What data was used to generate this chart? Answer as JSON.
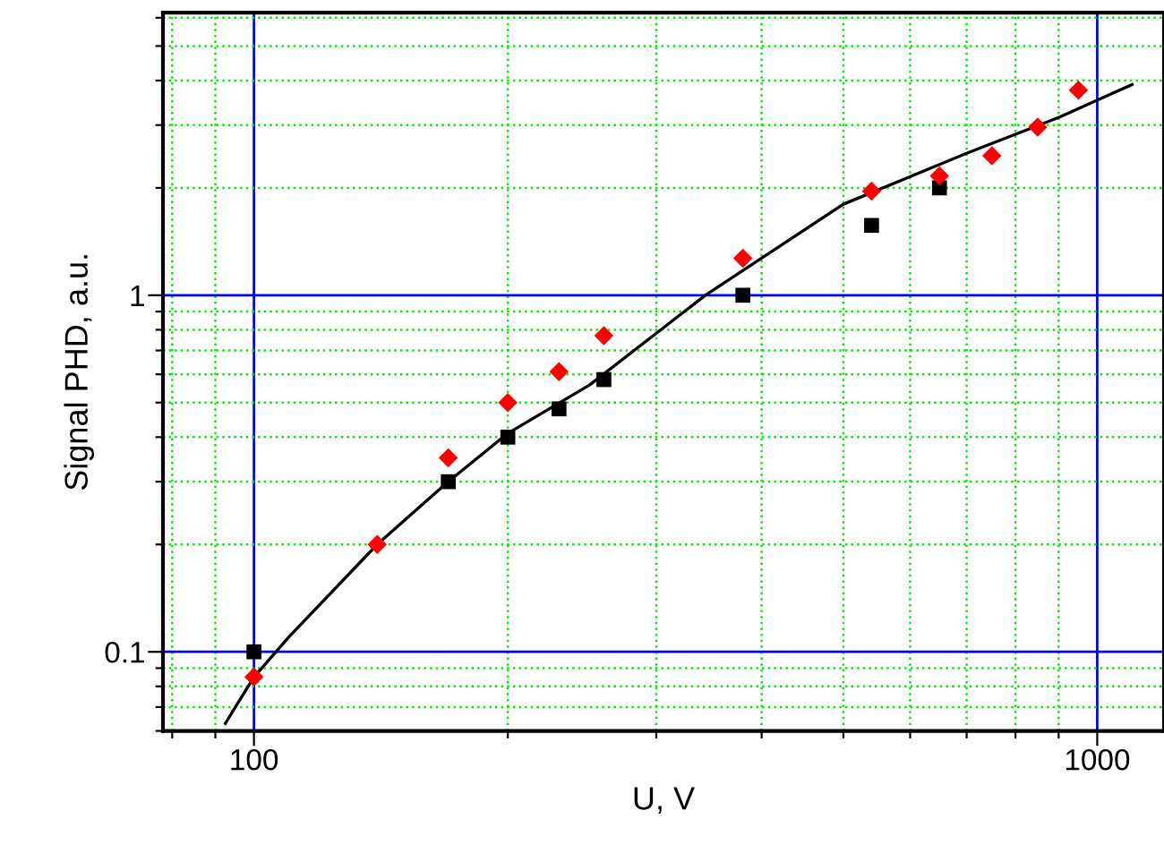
{
  "chart_data": {
    "type": "scatter",
    "xlabel": "U, V",
    "ylabel": "Signal PHD, a.u.",
    "log": "xy",
    "grid": true,
    "legend": false,
    "xlim": [
      78,
      1200
    ],
    "ylim": [
      0.06,
      6.2
    ],
    "xticks": [
      {
        "value": 80,
        "label": null
      },
      {
        "value": 90,
        "label": null
      },
      100,
      {
        "value": 200,
        "label": null
      },
      {
        "value": 300,
        "label": null
      },
      {
        "value": 400,
        "label": null
      },
      {
        "value": 500,
        "label": null
      },
      {
        "value": 600,
        "label": null
      },
      {
        "value": 700,
        "label": null
      },
      {
        "value": 800,
        "label": null
      },
      {
        "value": 900,
        "label": null
      },
      1000
    ],
    "yticks": [
      {
        "value": 0.06,
        "label": null
      },
      {
        "value": 0.07,
        "label": null
      },
      {
        "value": 0.08,
        "label": null
      },
      {
        "value": 0.09,
        "label": null
      },
      0.1,
      {
        "value": 0.2,
        "label": null
      },
      {
        "value": 0.3,
        "label": null
      },
      {
        "value": 0.4,
        "label": null
      },
      {
        "value": 0.5,
        "label": null
      },
      {
        "value": 0.6,
        "label": null
      },
      {
        "value": 0.7,
        "label": null
      },
      {
        "value": 0.8,
        "label": null
      },
      {
        "value": 0.9,
        "label": null
      },
      1,
      {
        "value": 2,
        "label": null
      },
      {
        "value": 3,
        "label": null
      },
      {
        "value": 4,
        "label": null
      },
      {
        "value": 5,
        "label": null
      },
      {
        "value": 6,
        "label": null
      }
    ],
    "series": [
      {
        "type": "line",
        "color": "#000000",
        "marker": "none",
        "line_style": "solid",
        "x": [
          92.5,
          100,
          110,
          140,
          170,
          200,
          250,
          343,
          500,
          700,
          900,
          1100
        ],
        "values": [
          0.063,
          0.085,
          0.11,
          0.2,
          0.3,
          0.41,
          0.56,
          1.0,
          1.8,
          2.5,
          3.15,
          3.9
        ]
      },
      {
        "color": "#000000",
        "marker": "square",
        "x": [
          100,
          170,
          200,
          230,
          260,
          380,
          540,
          650
        ],
        "values": [
          0.1,
          0.3,
          0.4,
          0.48,
          0.58,
          1.0,
          1.57,
          2.0
        ]
      },
      {
        "color": "#ff0000",
        "marker": "diamond",
        "x": [
          100,
          140,
          170,
          200,
          230,
          260,
          380,
          540,
          650,
          750,
          850,
          950
        ],
        "values": [
          0.085,
          0.2,
          0.35,
          0.5,
          0.61,
          0.77,
          1.27,
          1.96,
          2.16,
          2.46,
          2.96,
          3.76
        ]
      }
    ]
  }
}
